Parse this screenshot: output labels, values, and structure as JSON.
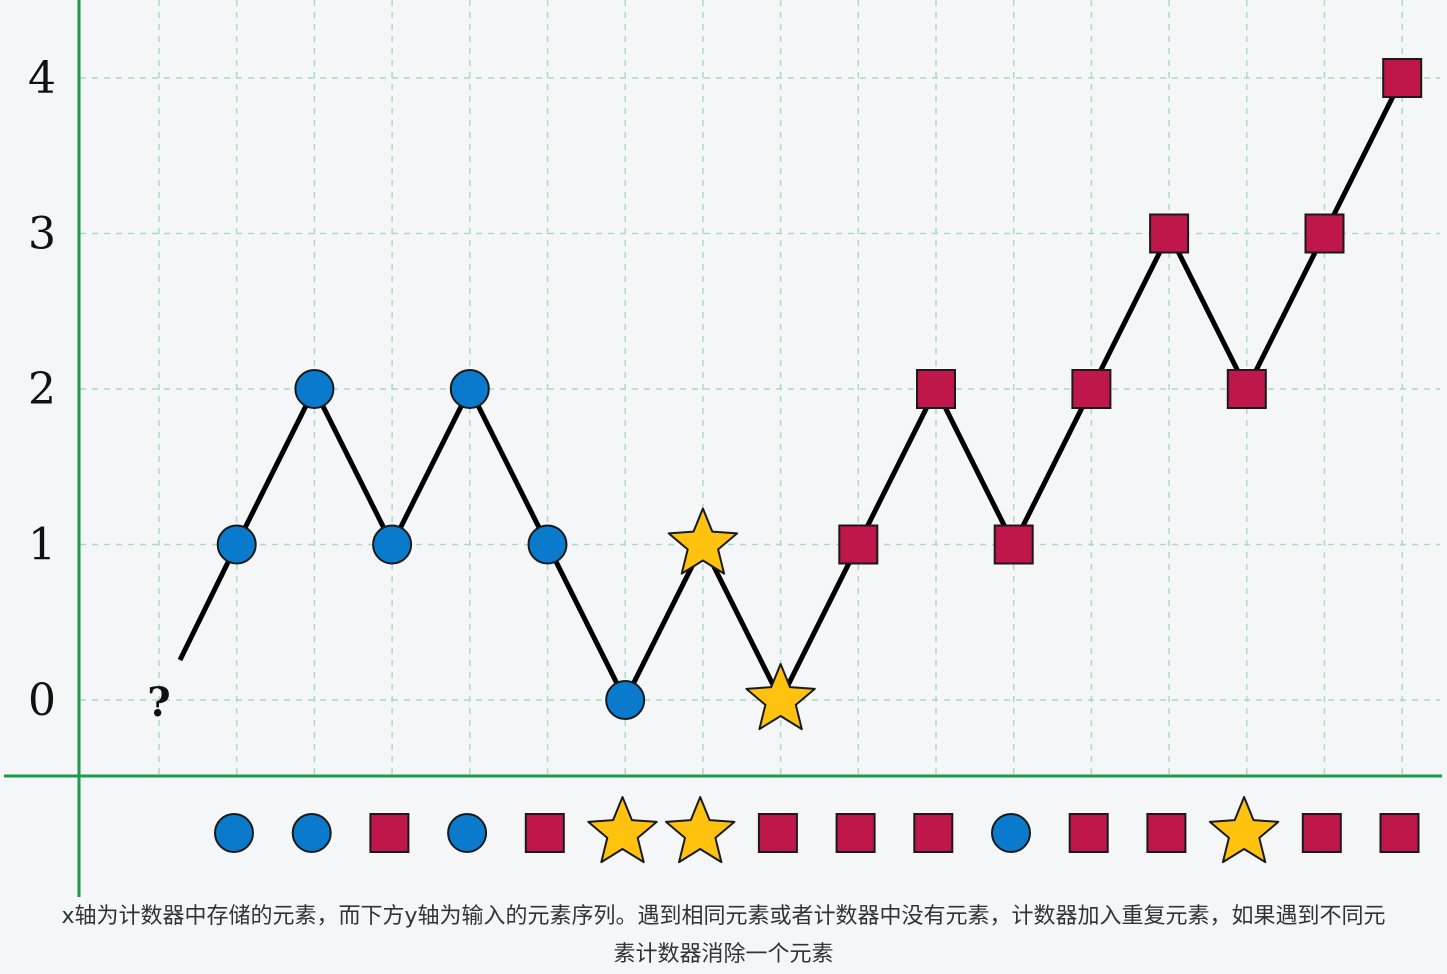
{
  "chart_data": {
    "type": "line",
    "description_source": "majority-vote counter walk",
    "y_ticks": [
      "0",
      "1",
      "2",
      "3",
      "4"
    ],
    "ylim": [
      0,
      4
    ],
    "grid": true,
    "start_marker": "?",
    "start_value": 0,
    "counter_path": [
      {
        "shape": "circle",
        "value": 1
      },
      {
        "shape": "circle",
        "value": 2
      },
      {
        "shape": "circle",
        "value": 1
      },
      {
        "shape": "circle",
        "value": 2
      },
      {
        "shape": "circle",
        "value": 1
      },
      {
        "shape": "circle",
        "value": 0
      },
      {
        "shape": "star",
        "value": 1
      },
      {
        "shape": "star",
        "value": 0
      },
      {
        "shape": "square",
        "value": 1
      },
      {
        "shape": "square",
        "value": 2
      },
      {
        "shape": "square",
        "value": 1
      },
      {
        "shape": "square",
        "value": 2
      },
      {
        "shape": "square",
        "value": 3
      },
      {
        "shape": "square",
        "value": 2
      },
      {
        "shape": "square",
        "value": 3
      },
      {
        "shape": "square",
        "value": 4
      }
    ],
    "input_sequence": [
      "circle",
      "circle",
      "square",
      "circle",
      "square",
      "star",
      "star",
      "square",
      "square",
      "square",
      "circle",
      "square",
      "square",
      "star",
      "square",
      "square"
    ]
  },
  "colors": {
    "circle": "#0a7acc",
    "square": "#c0174a",
    "star": "#ffc30f",
    "axis": "#1a9a4a",
    "grid": "#a8dcc0",
    "line": "#000000"
  },
  "caption": {
    "line1": "x轴为计数器中存储的元素，而下方y轴为输入的元素序列。遇到相同元素或者计数器中没有元素，计数器加入重复元素，如果遇到不同元",
    "line2": "素计数器消除一个元素"
  }
}
